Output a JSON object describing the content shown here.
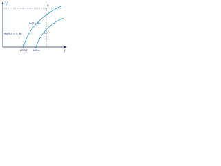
{
  "axes": {
    "y_label": "V",
    "x_label": "t"
  },
  "labels": {
    "t1": "t₁",
    "half_theta": "θeff(t) = ½ θ0",
    "full_theta": "θeff = θ0",
    "delta_v": "ΔV"
  },
  "x_marks": [
    "tDdel",
    "tDlim"
  ]
}
